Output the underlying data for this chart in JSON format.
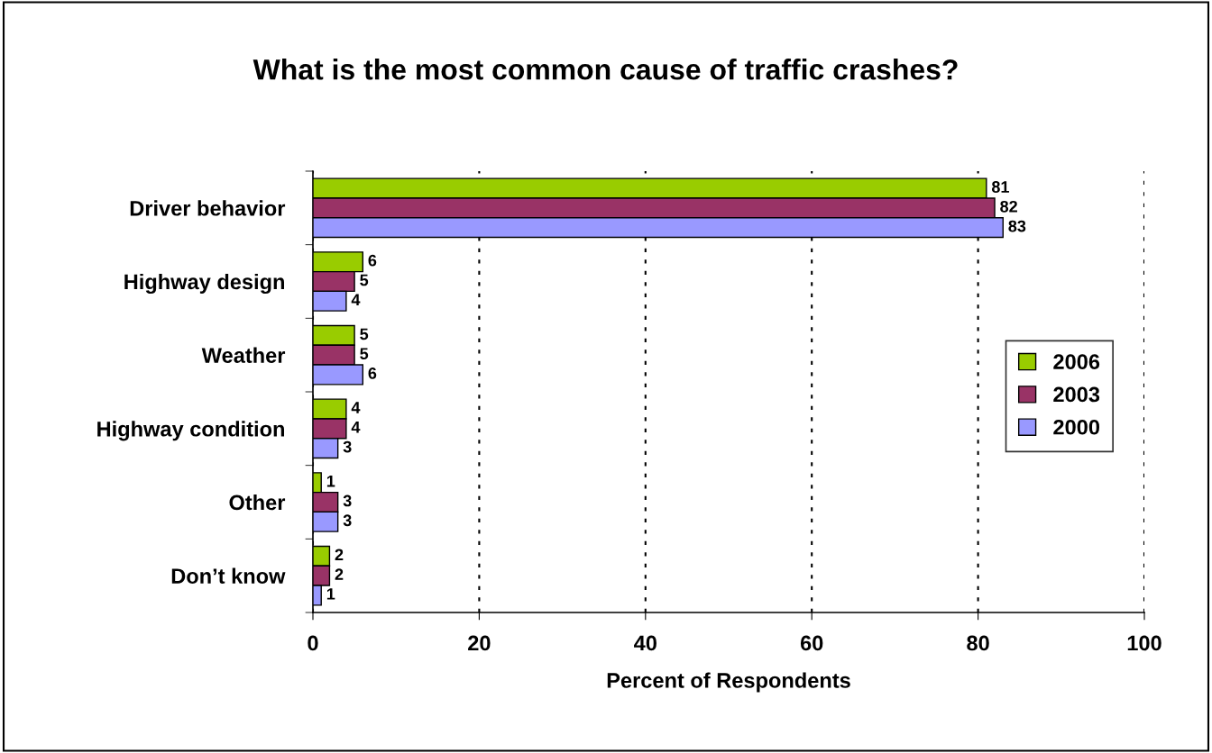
{
  "chart_data": {
    "type": "bar",
    "orientation": "horizontal",
    "title": "What is the most common cause of traffic crashes?",
    "xlabel": "Percent of Respondents",
    "categories": [
      "Driver behavior",
      "Highway design",
      "Weather",
      "Highway condition",
      "Other",
      "Don’t know"
    ],
    "series": [
      {
        "name": "2006",
        "color": "#99cc00",
        "values": [
          81,
          6,
          5,
          4,
          1,
          2
        ]
      },
      {
        "name": "2003",
        "color": "#993366",
        "values": [
          82,
          5,
          5,
          4,
          3,
          2
        ]
      },
      {
        "name": "2000",
        "color": "#9999ff",
        "values": [
          83,
          4,
          6,
          3,
          3,
          1
        ]
      }
    ],
    "xlim": [
      0,
      100
    ],
    "xticks": [
      0,
      20,
      40,
      60,
      80,
      100
    ],
    "grid": "x",
    "legend": "right",
    "data_labels": true
  }
}
